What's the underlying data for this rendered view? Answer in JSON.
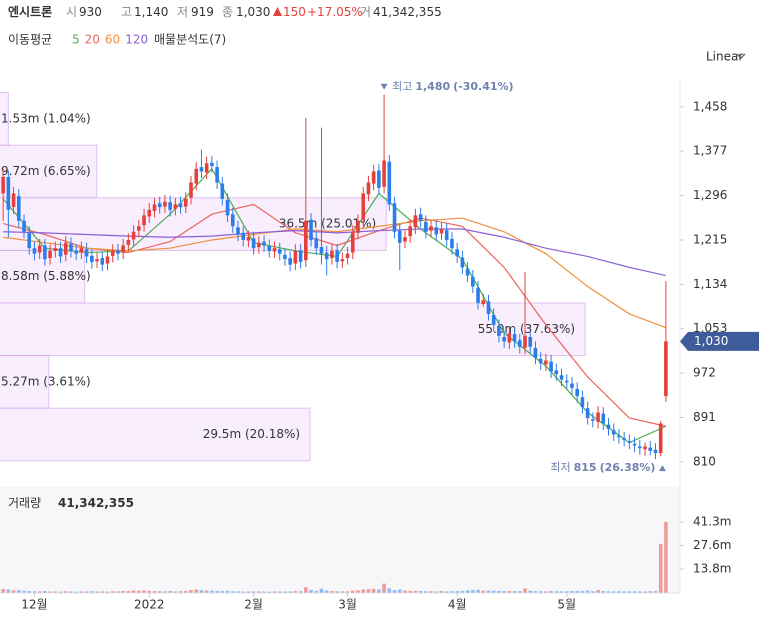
{
  "header": {
    "name": "엔시트론",
    "open": {
      "label": "시",
      "value": "930"
    },
    "high": {
      "label": "고",
      "value": "1,140"
    },
    "low": {
      "label": "저",
      "value": "919"
    },
    "close": {
      "label": "종",
      "value": "1,030"
    },
    "change": "150",
    "change_pct": "+17.05%",
    "volume": {
      "label": "거",
      "value": "41,342,355"
    }
  },
  "scale_mode": "Linear",
  "chart_data": [
    {
      "type": "candlestick",
      "ma_title": "이동평균",
      "up_color": "#e5403b",
      "down_color": "#2b7de9",
      "xlim": [
        -0.6,
        129.7
      ],
      "ylim": [
        786,
        1507
      ],
      "xticks": [
        {
          "value": 6,
          "label": "12월"
        },
        {
          "value": 28,
          "label": "2022"
        },
        {
          "value": 48,
          "label": "2월"
        },
        {
          "value": 66,
          "label": "3월"
        },
        {
          "value": 87,
          "label": "4월"
        },
        {
          "value": 108,
          "label": "5월"
        }
      ],
      "yticks": [
        {
          "value": 1458,
          "label": "1,458"
        },
        {
          "value": 1377,
          "label": "1,377"
        },
        {
          "value": 1296,
          "label": "1,296"
        },
        {
          "value": 1215,
          "label": "1,215"
        },
        {
          "value": 1134,
          "label": "1,134"
        },
        {
          "value": 1053,
          "label": "1,053"
        },
        972,
        891,
        810
      ],
      "x": [
        0,
        1,
        2,
        3,
        4,
        5,
        6,
        7,
        8,
        9,
        10,
        11,
        12,
        13,
        14,
        15,
        16,
        17,
        18,
        19,
        20,
        21,
        22,
        23,
        24,
        25,
        26,
        27,
        28,
        29,
        30,
        31,
        32,
        33,
        34,
        35,
        36,
        37,
        38,
        39,
        40,
        41,
        42,
        43,
        44,
        45,
        46,
        47,
        48,
        49,
        50,
        51,
        52,
        53,
        54,
        55,
        56,
        57,
        58,
        59,
        60,
        61,
        62,
        63,
        64,
        65,
        66,
        67,
        68,
        69,
        70,
        71,
        72,
        73,
        74,
        75,
        76,
        77,
        78,
        79,
        80,
        81,
        82,
        83,
        84,
        85,
        86,
        87,
        88,
        89,
        90,
        91,
        92,
        93,
        94,
        95,
        96,
        97,
        98,
        99,
        100,
        101,
        102,
        103,
        104,
        105,
        106,
        107,
        108,
        109,
        110,
        111,
        112,
        113,
        114,
        115,
        116,
        117,
        118,
        119,
        120,
        121,
        122,
        123,
        124,
        125,
        126,
        127
      ],
      "open": [
        1300,
        1330,
        1275,
        1295,
        1250,
        1228,
        1200,
        1192,
        1205,
        1182,
        1195,
        1200,
        1188,
        1208,
        1195,
        1192,
        1198,
        1186,
        1176,
        1182,
        1172,
        1186,
        1196,
        1192,
        1206,
        1216,
        1232,
        1242,
        1258,
        1268,
        1282,
        1276,
        1284,
        1272,
        1282,
        1276,
        1292,
        1318,
        1348,
        1338,
        1356,
        1348,
        1318,
        1288,
        1262,
        1238,
        1228,
        1214,
        1218,
        1202,
        1212,
        1204,
        1194,
        1198,
        1188,
        1182,
        1172,
        1196,
        1178,
        1252,
        1218,
        1202,
        1192,
        1182,
        1196,
        1176,
        1182,
        1192,
        1228,
        1252,
        1298,
        1318,
        1342,
        1312,
        1358,
        1282,
        1232,
        1212,
        1222,
        1238,
        1262,
        1248,
        1232,
        1238,
        1227,
        1233,
        1217,
        1198,
        1183,
        1163,
        1148,
        1128,
        1098,
        1103,
        1078,
        1058,
        1038,
        1028,
        1043,
        1032,
        1018,
        1038,
        1018,
        998,
        988,
        993,
        977,
        968,
        958,
        953,
        943,
        928,
        908,
        888,
        883,
        898,
        878,
        868,
        858,
        853,
        848,
        843,
        838,
        833,
        836,
        832,
        826,
        930
      ],
      "high": [
        1345,
        1342,
        1312,
        1308,
        1262,
        1240,
        1212,
        1217,
        1217,
        1207,
        1212,
        1212,
        1222,
        1220,
        1207,
        1212,
        1210,
        1198,
        1192,
        1194,
        1197,
        1207,
        1208,
        1217,
        1227,
        1242,
        1252,
        1272,
        1282,
        1292,
        1294,
        1297,
        1296,
        1292,
        1294,
        1302,
        1332,
        1357,
        1380,
        1367,
        1368,
        1360,
        1330,
        1300,
        1274,
        1250,
        1240,
        1232,
        1230,
        1222,
        1224,
        1216,
        1212,
        1210,
        1200,
        1194,
        1207,
        1208,
        1438,
        1264,
        1230,
        1420,
        1204,
        1207,
        1208,
        1192,
        1202,
        1242,
        1262,
        1312,
        1332,
        1352,
        1354,
        1480,
        1370,
        1294,
        1244,
        1232,
        1252,
        1272,
        1274,
        1260,
        1252,
        1250,
        1247,
        1245,
        1229,
        1210,
        1195,
        1175,
        1160,
        1140,
        1117,
        1115,
        1090,
        1070,
        1050,
        1057,
        1055,
        1044,
        1157,
        1050,
        1030,
        1010,
        1007,
        1005,
        989,
        980,
        970,
        965,
        955,
        940,
        920,
        900,
        912,
        910,
        890,
        880,
        870,
        865,
        860,
        855,
        850,
        845,
        848,
        844,
        885,
        1140
      ],
      "low": [
        1250,
        1220,
        1262,
        1238,
        1218,
        1188,
        1178,
        1180,
        1168,
        1170,
        1183,
        1173,
        1176,
        1183,
        1178,
        1180,
        1173,
        1163,
        1164,
        1158,
        1160,
        1174,
        1178,
        1180,
        1194,
        1204,
        1220,
        1230,
        1246,
        1256,
        1263,
        1264,
        1258,
        1260,
        1263,
        1264,
        1280,
        1306,
        1328,
        1326,
        1338,
        1308,
        1278,
        1248,
        1228,
        1213,
        1203,
        1202,
        1188,
        1190,
        1193,
        1183,
        1182,
        1178,
        1168,
        1158,
        1160,
        1163,
        1166,
        1203,
        1188,
        1170,
        1150,
        1170,
        1163,
        1164,
        1170,
        1180,
        1216,
        1240,
        1286,
        1306,
        1298,
        1300,
        1268,
        1218,
        1160,
        1200,
        1210,
        1226,
        1238,
        1218,
        1220,
        1213,
        1215,
        1203,
        1188,
        1173,
        1153,
        1138,
        1118,
        1088,
        1093,
        1068,
        1048,
        1028,
        1018,
        1016,
        1018,
        1008,
        1006,
        1008,
        988,
        978,
        976,
        963,
        958,
        948,
        943,
        933,
        918,
        898,
        878,
        873,
        871,
        868,
        858,
        848,
        843,
        838,
        833,
        828,
        823,
        821,
        822,
        815,
        820,
        919
      ],
      "close": [
        1330,
        1270,
        1300,
        1250,
        1230,
        1200,
        1190,
        1205,
        1180,
        1195,
        1200,
        1185,
        1210,
        1195,
        1190,
        1200,
        1185,
        1175,
        1180,
        1170,
        1185,
        1195,
        1190,
        1205,
        1215,
        1230,
        1240,
        1260,
        1270,
        1280,
        1275,
        1285,
        1270,
        1280,
        1275,
        1290,
        1320,
        1345,
        1340,
        1355,
        1350,
        1320,
        1290,
        1260,
        1240,
        1225,
        1215,
        1220,
        1200,
        1210,
        1205,
        1195,
        1200,
        1190,
        1180,
        1170,
        1195,
        1175,
        1250,
        1215,
        1200,
        1190,
        1180,
        1195,
        1175,
        1180,
        1190,
        1230,
        1250,
        1300,
        1320,
        1340,
        1310,
        1360,
        1280,
        1230,
        1210,
        1220,
        1240,
        1260,
        1250,
        1230,
        1240,
        1225,
        1235,
        1215,
        1200,
        1185,
        1165,
        1150,
        1130,
        1100,
        1105,
        1080,
        1060,
        1040,
        1030,
        1045,
        1030,
        1020,
        1040,
        1020,
        1000,
        990,
        995,
        975,
        970,
        960,
        955,
        945,
        930,
        910,
        890,
        885,
        900,
        880,
        870,
        860,
        855,
        850,
        845,
        840,
        835,
        838,
        830,
        826,
        880,
        1030
      ],
      "lines": [
        {
          "name": "5",
          "color": "#4caf50",
          "x": [
            0,
            8,
            16,
            24,
            32,
            40,
            48,
            56,
            64,
            72,
            80,
            88,
            96,
            104,
            112,
            120,
            127
          ],
          "values": [
            1290,
            1200,
            1192,
            1195,
            1262,
            1345,
            1210,
            1195,
            1185,
            1300,
            1235,
            1180,
            1045,
            985,
            900,
            845,
            875
          ]
        },
        {
          "name": "20",
          "color": "#e8675c",
          "x": [
            0,
            8,
            16,
            24,
            32,
            40,
            48,
            56,
            64,
            72,
            80,
            88,
            96,
            104,
            112,
            120,
            127
          ],
          "values": [
            1245,
            1225,
            1200,
            1192,
            1212,
            1262,
            1280,
            1228,
            1205,
            1232,
            1255,
            1240,
            1165,
            1060,
            965,
            890,
            875
          ]
        },
        {
          "name": "60",
          "color": "#f0903c",
          "x": [
            0,
            8,
            16,
            24,
            32,
            40,
            48,
            56,
            64,
            72,
            80,
            88,
            96,
            104,
            112,
            120,
            127
          ],
          "values": [
            1220,
            1210,
            1200,
            1195,
            1200,
            1215,
            1225,
            1235,
            1230,
            1240,
            1250,
            1255,
            1230,
            1190,
            1130,
            1080,
            1055
          ]
        },
        {
          "name": "120",
          "color": "#8d5fd8",
          "x": [
            0,
            8,
            16,
            24,
            32,
            40,
            48,
            56,
            64,
            72,
            80,
            88,
            96,
            104,
            112,
            120,
            127
          ],
          "values": [
            1230,
            1228,
            1225,
            1222,
            1220,
            1222,
            1228,
            1232,
            1228,
            1232,
            1235,
            1235,
            1220,
            1200,
            1185,
            1165,
            1150
          ]
        }
      ],
      "profile": {
        "title": "매물분석도(7)",
        "xlim": [
          0,
          43.65
        ],
        "bins": [
          812,
          908,
          1004,
          1100,
          1196,
          1292,
          1388,
          1484
        ],
        "values": [
          20.18,
          3.61,
          37.63,
          5.88,
          25.01,
          6.65,
          1.04
        ],
        "value_labels": [
          "29.5m (20.18%)",
          "5.27m (3.61%)",
          "55.0m (37.63%)",
          "8.58m (5.88%)",
          "36.5m (25.01%)",
          "9.72m (6.65%)",
          "1.53m (1.04%)"
        ]
      },
      "annotations": [
        {
          "text": "최고",
          "label": "1,480",
          "value": 1480,
          "change": "(-30.41%)",
          "x": 73
        },
        {
          "text": "최저",
          "label": "815",
          "value": 815,
          "change": "(26.38%)",
          "x": 125
        }
      ],
      "price_tag": {
        "value": 1030,
        "label": "1,030"
      }
    },
    {
      "type": "bar",
      "title": "거래량",
      "latest": "41,342,355",
      "ylim": [
        0,
        60000000
      ],
      "yticks": [
        {
          "value": 41300000,
          "label": "41.3m"
        },
        {
          "value": 27600000,
          "label": "27.6m"
        },
        {
          "value": 13800000,
          "label": "13.8m"
        }
      ],
      "values": [
        2100000,
        1800000,
        1300000,
        1500000,
        1100000,
        900000,
        800000,
        700000,
        900000,
        600000,
        700000,
        600000,
        800000,
        700000,
        500000,
        600000,
        700000,
        800000,
        600000,
        700000,
        600000,
        800000,
        700000,
        900000,
        1000000,
        1200000,
        1100000,
        1300000,
        1000000,
        900000,
        800000,
        700000,
        900000,
        700000,
        800000,
        1000000,
        1500000,
        1800000,
        1400000,
        1200000,
        1100000,
        1000000,
        900000,
        1000000,
        800000,
        700000,
        600000,
        700000,
        600000,
        700000,
        600000,
        500000,
        600000,
        700000,
        600000,
        700000,
        900000,
        800000,
        3100000,
        1500000,
        1000000,
        2200000,
        1200000,
        900000,
        800000,
        700000,
        800000,
        1100000,
        1300000,
        1800000,
        2000000,
        2200000,
        1900000,
        5200000,
        2500000,
        1500000,
        1800000,
        1200000,
        1000000,
        1100000,
        900000,
        800000,
        800000,
        700000,
        900000,
        700000,
        800000,
        900000,
        1000000,
        1300000,
        1400000,
        1600000,
        1100000,
        1200000,
        1100000,
        1000000,
        900000,
        1000000,
        800000,
        900000,
        2400000,
        1200000,
        900000,
        800000,
        700000,
        900000,
        800000,
        700000,
        800000,
        900000,
        1000000,
        900000,
        1200000,
        800000,
        1500000,
        900000,
        800000,
        700000,
        800000,
        700000,
        700000,
        800000,
        700000,
        600000,
        800000,
        900000,
        28500000,
        41342355
      ]
    }
  ]
}
